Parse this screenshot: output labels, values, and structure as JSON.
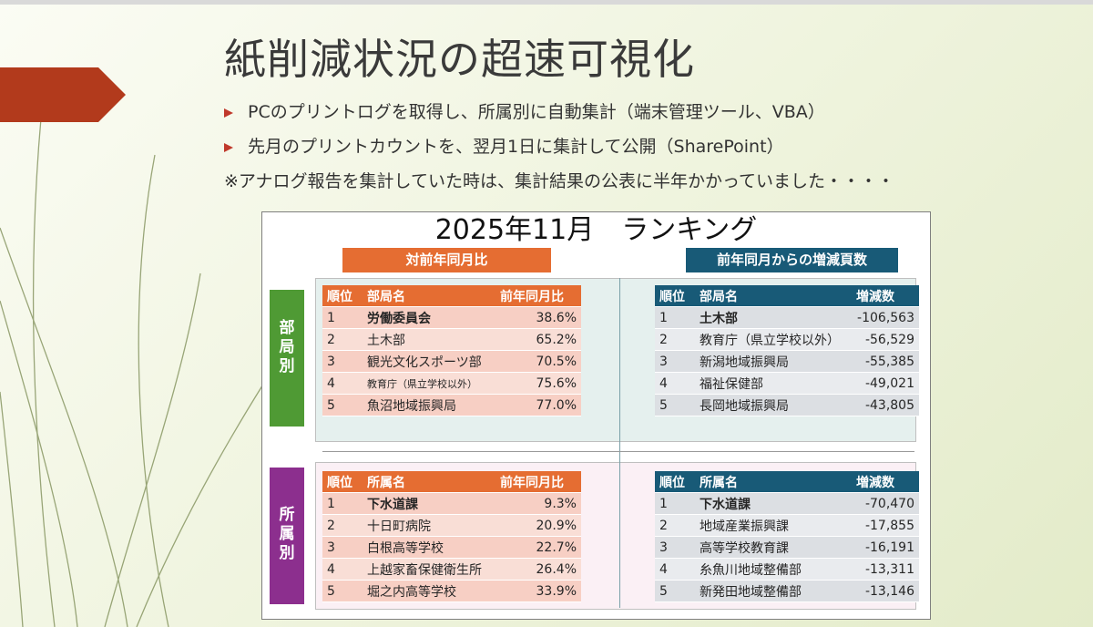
{
  "slide": {
    "title": "紙削減状況の超速可視化",
    "bullets": [
      "PCのプリントログを取得し、所属別に自動集計（端末管理ツール、VBA）",
      "先月のプリントカウントを、翌月1日に集計して公開（SharePoint）"
    ],
    "note": "※アナログ報告を集計していた時は、集計結果の公表に半年かかっていました・・・・"
  },
  "panel": {
    "title": "2025年11月　ランキング",
    "header_left": "対前年同月比",
    "header_right": "前年同月からの増減頁数",
    "side_top": [
      "部",
      "局",
      "別"
    ],
    "side_bottom": [
      "所",
      "属",
      "別"
    ]
  },
  "tables": {
    "bureau_ratio": {
      "columns": [
        "順位",
        "部局名",
        "前年同月比"
      ],
      "rows": [
        [
          "1",
          "労働委員会",
          "38.6%"
        ],
        [
          "2",
          "土木部",
          "65.2%"
        ],
        [
          "3",
          "観光文化スポーツ部",
          "70.5%"
        ],
        [
          "4",
          "教育庁（県立学校以外）",
          "75.6%"
        ],
        [
          "5",
          "魚沼地域振興局",
          "77.0%"
        ]
      ]
    },
    "bureau_diff": {
      "columns": [
        "順位",
        "部局名",
        "増減数"
      ],
      "rows": [
        [
          "1",
          "土木部",
          "-106,563"
        ],
        [
          "2",
          "教育庁（県立学校以外）",
          "-56,529"
        ],
        [
          "3",
          "新潟地域振興局",
          "-55,385"
        ],
        [
          "4",
          "福祉保健部",
          "-49,021"
        ],
        [
          "5",
          "長岡地域振興局",
          "-43,805"
        ]
      ]
    },
    "office_ratio": {
      "columns": [
        "順位",
        "所属名",
        "前年同月比"
      ],
      "rows": [
        [
          "1",
          "下水道課",
          "9.3%"
        ],
        [
          "2",
          "十日町病院",
          "20.9%"
        ],
        [
          "3",
          "白根高等学校",
          "22.7%"
        ],
        [
          "4",
          "上越家畜保健衛生所",
          "26.4%"
        ],
        [
          "5",
          "堀之内高等学校",
          "33.9%"
        ]
      ]
    },
    "office_diff": {
      "columns": [
        "順位",
        "所属名",
        "増減数"
      ],
      "rows": [
        [
          "1",
          "下水道課",
          "-70,470"
        ],
        [
          "2",
          "地域産業振興課",
          "-17,855"
        ],
        [
          "3",
          "高等学校教育課",
          "-16,191"
        ],
        [
          "4",
          "糸魚川地域整備部",
          "-13,311"
        ],
        [
          "5",
          "新発田地域整備部",
          "-13,146"
        ]
      ]
    }
  },
  "colors": {
    "accent_arrow": "#b23a1c",
    "orange": "#e56d32",
    "teal": "#185a77",
    "green": "#4f9a34",
    "purple": "#8c2f8e"
  }
}
